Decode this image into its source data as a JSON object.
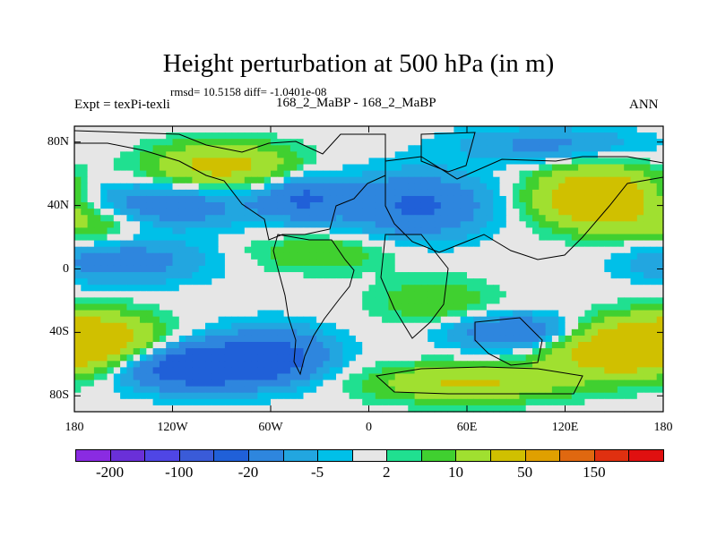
{
  "chart_data": {
    "type": "heatmap",
    "title": "Height perturbation at 500 hPa (in m)",
    "stats_text": "rmsd= 10.5158 diff= -1.0401e-08",
    "left_label": "Expt = texPi-texli",
    "center_label": "168_2_MaBP - 168_2_MaBP",
    "right_label": "ANN",
    "x_ticks": [
      "180",
      "120W",
      "60W",
      "0",
      "60E",
      "120E",
      "180"
    ],
    "y_ticks": [
      "80N",
      "40N",
      "0",
      "40S",
      "80S"
    ],
    "x_tick_values": [
      -180,
      -120,
      -60,
      0,
      60,
      120,
      180
    ],
    "y_tick_values": [
      80,
      40,
      0,
      -40,
      -80
    ],
    "xlim": [
      -180,
      180
    ],
    "ylim": [
      -90,
      90
    ],
    "colorbar_levels": [
      -200,
      -150,
      -100,
      -50,
      -20,
      -10,
      -5,
      -2,
      2,
      5,
      10,
      20,
      50,
      100,
      150,
      200
    ],
    "colorbar_labels": [
      "-200",
      "-100",
      "-20",
      "-5",
      "2",
      "10",
      "50",
      "150"
    ],
    "colorbar_colors": [
      "#8a2be2",
      "#6a30d8",
      "#4f46e5",
      "#3a5bd8",
      "#2060d8",
      "#2e86de",
      "#22a6e0",
      "#00c0e8",
      "#e6e6e6",
      "#20e090",
      "#40d030",
      "#a0e030",
      "#d0c000",
      "#e0a000",
      "#e06810",
      "#e03010",
      "#e01010"
    ],
    "field_centers": [
      {
        "lon": -110,
        "lat": -62,
        "amp": -32,
        "slon": 30,
        "slat": 10
      },
      {
        "lon": -60,
        "lat": -55,
        "amp": -26,
        "slon": 25,
        "slat": 12
      },
      {
        "lon": 95,
        "lat": -40,
        "amp": -22,
        "slon": 30,
        "slat": 8
      },
      {
        "lon": -130,
        "lat": 40,
        "amp": -18,
        "slon": 40,
        "slat": 10
      },
      {
        "lon": -150,
        "lat": 5,
        "amp": -15,
        "slon": 35,
        "slat": 10
      },
      {
        "lon": -40,
        "lat": 45,
        "amp": -20,
        "slon": 20,
        "slat": 10
      },
      {
        "lon": 30,
        "lat": 40,
        "amp": -22,
        "slon": 30,
        "slat": 14
      },
      {
        "lon": 110,
        "lat": 78,
        "amp": -12,
        "slon": 40,
        "slat": 8
      },
      {
        "lon": 140,
        "lat": 45,
        "amp": 40,
        "slon": 25,
        "slat": 13
      },
      {
        "lon": 150,
        "lat": -50,
        "amp": 35,
        "slon": 30,
        "slat": 12
      },
      {
        "lon": -165,
        "lat": -45,
        "amp": 30,
        "slon": 25,
        "slat": 12
      },
      {
        "lon": -90,
        "lat": 65,
        "amp": 25,
        "slon": 30,
        "slat": 10
      },
      {
        "lon": 60,
        "lat": -72,
        "amp": 22,
        "slon": 40,
        "slat": 8
      },
      {
        "lon": -170,
        "lat": 30,
        "amp": 14,
        "slon": 25,
        "slat": 10
      },
      {
        "lon": -30,
        "lat": 10,
        "amp": 10,
        "slon": 30,
        "slat": 8
      },
      {
        "lon": 40,
        "lat": -20,
        "amp": 10,
        "slon": 25,
        "slat": 10
      }
    ]
  }
}
